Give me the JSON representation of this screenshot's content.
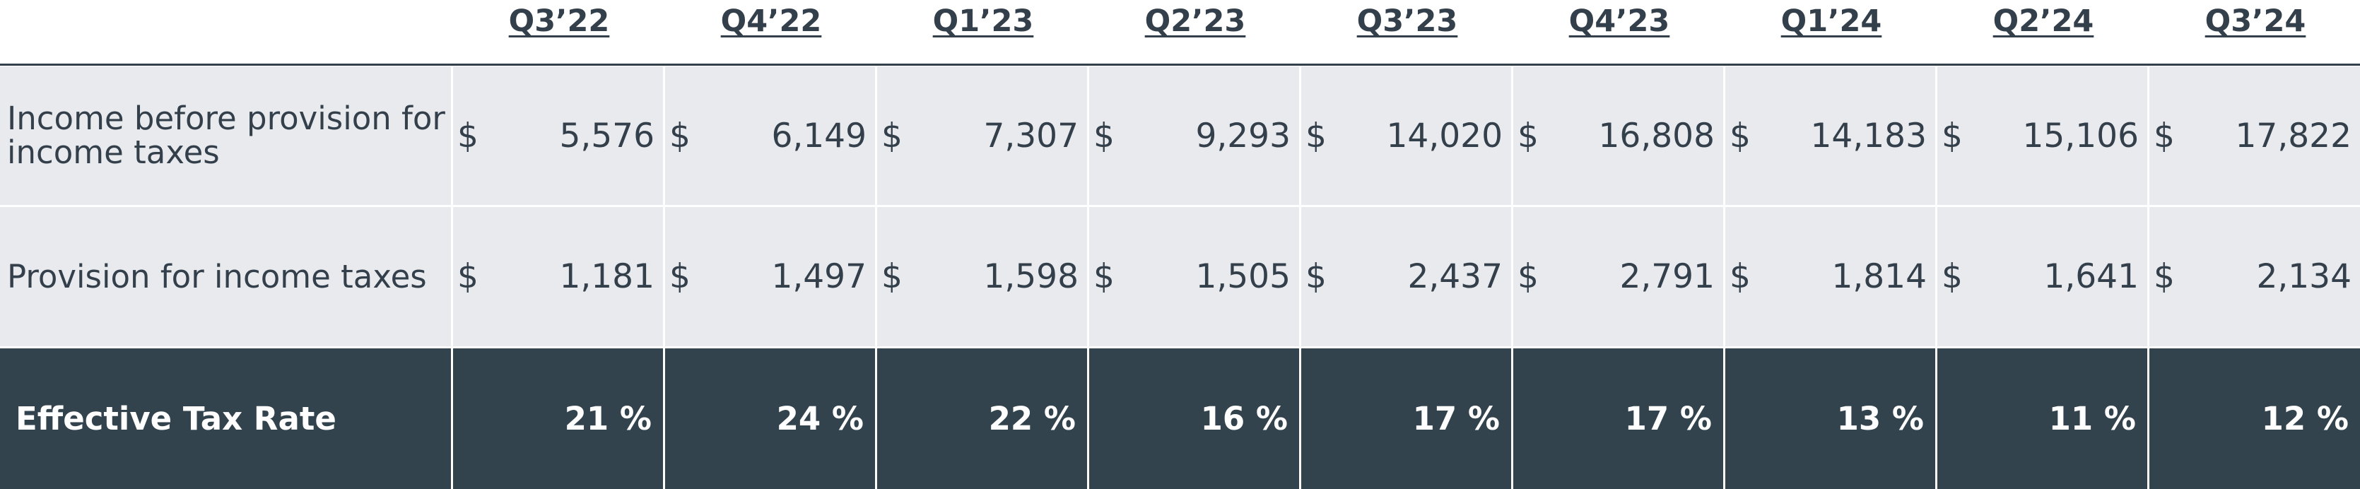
{
  "columns": [
    "Q3’22",
    "Q4’22",
    "Q1’23",
    "Q2’23",
    "Q3’23",
    "Q4’23",
    "Q1’24",
    "Q2’24",
    "Q3’24"
  ],
  "currency_symbol": "$",
  "rows": [
    {
      "label": "Income before provision for income taxes",
      "values": [
        "5,576",
        "6,149",
        "7,307",
        "9,293",
        "14,020",
        "16,808",
        "14,183",
        "15,106",
        "17,822"
      ]
    },
    {
      "label": "Provision for income taxes",
      "values": [
        "1,181",
        "1,497",
        "1,598",
        "1,505",
        "2,437",
        "2,791",
        "1,814",
        "1,641",
        "2,134"
      ]
    },
    {
      "label": "Effective Tax Rate",
      "values": [
        "21 %",
        "24 %",
        "22 %",
        "16 %",
        "17 %",
        "17 %",
        "13 %",
        "11 %",
        "12 %"
      ]
    }
  ],
  "colors": {
    "text": "#333f4a",
    "row_background": "#e9eaed",
    "highlight_row_background": "#33434e",
    "highlight_text": "#ffffff"
  }
}
